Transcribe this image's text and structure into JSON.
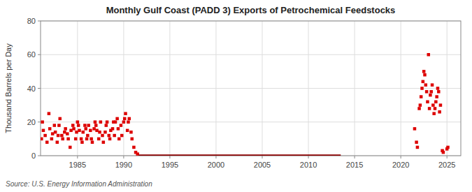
{
  "chart_data": {
    "type": "scatter",
    "title": "Monthly Gulf Coast (PADD 3) Exports of Petrochemical Feedstocks",
    "y_label": "Thousand Barrels per Day",
    "source": "Source: U.S. Energy Information Administration",
    "grid": true,
    "ylim": [
      0,
      80
    ],
    "yticks": [
      0,
      20,
      40,
      60,
      80
    ],
    "xlim": [
      1981.0,
      2026.5
    ],
    "xticks": [
      1985,
      1990,
      1995,
      2000,
      2005,
      2010,
      2015,
      2020,
      2025
    ],
    "series": [
      {
        "type": "scatter",
        "marker": "square",
        "color": "#dd0000",
        "x": [
          1981.1,
          1981.2,
          1981.3,
          1981.5,
          1981.7,
          1981.9,
          1982.0,
          1982.2,
          1982.3,
          1982.5,
          1982.6,
          1982.8,
          1982.9,
          1983.0,
          1983.1,
          1983.3,
          1983.4,
          1983.6,
          1983.7,
          1983.9,
          1984.0,
          1984.2,
          1984.3,
          1984.5,
          1984.6,
          1984.8,
          1984.9,
          1985.0,
          1985.1,
          1985.2,
          1985.4,
          1985.5,
          1985.6,
          1985.8,
          1985.9,
          1986.0,
          1986.1,
          1986.2,
          1986.4,
          1986.5,
          1986.6,
          1986.8,
          1986.9,
          1987.0,
          1987.1,
          1987.3,
          1987.4,
          1987.5,
          1987.7,
          1987.8,
          1988.0,
          1988.1,
          1988.2,
          1988.4,
          1988.5,
          1988.6,
          1988.8,
          1988.9,
          1989.0,
          1989.1,
          1989.3,
          1989.4,
          1989.5,
          1989.7,
          1989.8,
          1990.0,
          1990.1,
          1990.2,
          1990.4,
          1990.5,
          1990.6,
          1990.8,
          1990.9,
          1991.1,
          1991.3,
          1991.5
        ],
        "values": [
          10,
          20,
          15,
          12,
          8,
          25,
          16,
          10,
          13,
          18,
          14,
          8,
          12,
          18,
          22,
          12,
          10,
          14,
          16,
          13,
          10,
          5,
          15,
          18,
          16,
          10,
          14,
          20,
          18,
          15,
          10,
          8,
          14,
          18,
          16,
          10,
          12,
          18,
          15,
          10,
          8,
          16,
          20,
          18,
          15,
          10,
          14,
          20,
          12,
          8,
          14,
          18,
          20,
          12,
          10,
          15,
          16,
          20,
          12,
          20,
          22,
          16,
          10,
          18,
          12,
          20,
          22,
          25,
          15,
          20,
          22,
          14,
          10,
          5,
          2,
          1
        ]
      },
      {
        "type": "line",
        "line_style": "solid",
        "color": "#8b0000",
        "x": [
          1991.6,
          2013.5
        ],
        "values": [
          0,
          0
        ]
      },
      {
        "type": "scatter",
        "marker": "square",
        "color": "#dd0000",
        "x": [
          2021.5,
          2021.7,
          2021.8,
          2022.0,
          2022.1,
          2022.2,
          2022.3,
          2022.4,
          2022.5,
          2022.6,
          2022.7,
          2022.8,
          2022.9,
          2023.0,
          2023.1,
          2023.2,
          2023.3,
          2023.4,
          2023.5,
          2023.6,
          2023.7,
          2023.8,
          2023.9,
          2024.0,
          2024.1,
          2024.2,
          2024.3,
          2024.5,
          2024.6,
          2025.0,
          2025.1
        ],
        "values": [
          16,
          8,
          5,
          28,
          30,
          35,
          40,
          44,
          50,
          48,
          42,
          38,
          32,
          60,
          28,
          36,
          38,
          42,
          30,
          25,
          28,
          32,
          35,
          40,
          38,
          26,
          30,
          3,
          2,
          4,
          5
        ]
      }
    ]
  }
}
